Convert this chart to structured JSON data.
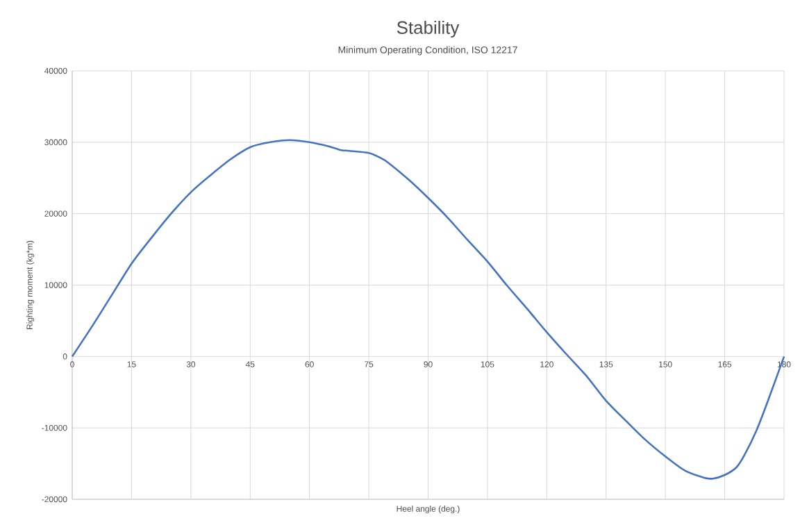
{
  "chart_data": {
    "type": "line",
    "title": "Stability",
    "subtitle": "Minimum Operating Condition, ISO 12217",
    "xlabel": "Heel angle (deg.)",
    "ylabel": "Righting moment (kg*m)",
    "x": [
      0,
      5,
      10,
      15,
      20,
      25,
      30,
      35,
      40,
      45,
      50,
      55,
      60,
      65,
      68,
      70,
      75,
      78,
      80,
      85,
      90,
      95,
      100,
      105,
      110,
      115,
      120,
      125,
      130,
      135,
      140,
      145,
      150,
      155,
      160,
      162,
      165,
      168,
      170,
      173,
      176,
      180
    ],
    "series": [
      {
        "color": "#4472c4",
        "values": [
          0,
          4200,
          8600,
          13000,
          16600,
          20000,
          23000,
          25400,
          27600,
          29300,
          30000,
          30300,
          30000,
          29400,
          28900,
          28800,
          28500,
          27800,
          27100,
          24800,
          22200,
          19400,
          16300,
          13300,
          9900,
          6700,
          3400,
          300,
          -2700,
          -6200,
          -9000,
          -11700,
          -14000,
          -16000,
          -17000,
          -17100,
          -16600,
          -15500,
          -13800,
          -10400,
          -6100,
          0
        ]
      }
    ],
    "xlim": [
      0,
      180
    ],
    "ylim": [
      -20000,
      40000
    ],
    "xticks": [
      0,
      15,
      30,
      45,
      60,
      75,
      90,
      105,
      120,
      135,
      150,
      165,
      180
    ],
    "yticks": [
      -20000,
      -10000,
      0,
      10000,
      20000,
      30000,
      40000
    ],
    "grid": true
  }
}
